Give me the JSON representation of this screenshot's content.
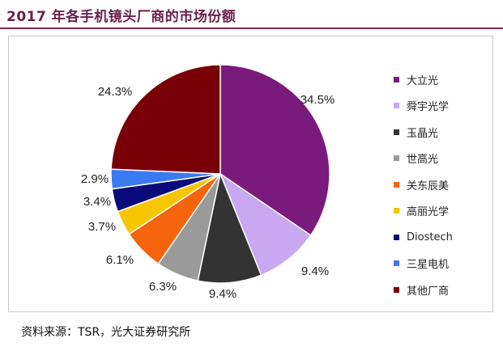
{
  "title": "2017 年各手机镜头厂商的市场份额",
  "source": "资料来源：TSR，光大证券研究所",
  "chart_data": {
    "type": "pie",
    "title": "2017 年各手机镜头厂商的市场份额",
    "legend_position": "right",
    "slices": [
      {
        "name": "大立光",
        "value": 34.5,
        "label": "34.5%",
        "color": "#7b1a7d"
      },
      {
        "name": "舜宇光学",
        "value": 9.4,
        "label": "9.4%",
        "color": "#c9a7f1"
      },
      {
        "name": "玉晶光",
        "value": 9.4,
        "label": "9.4%",
        "color": "#333333"
      },
      {
        "name": "世高光",
        "value": 6.3,
        "label": "6.3%",
        "color": "#9a9a9a"
      },
      {
        "name": "关东辰美",
        "value": 6.1,
        "label": "6.1%",
        "color": "#f5640c"
      },
      {
        "name": "高丽光学",
        "value": 3.7,
        "label": "3.7%",
        "color": "#f7c600"
      },
      {
        "name": "Diostech",
        "value": 3.4,
        "label": "3.4%",
        "color": "#0a0a7a"
      },
      {
        "name": "三星电机",
        "value": 2.9,
        "label": "2.9%",
        "color": "#3a7af0"
      },
      {
        "name": "其他厂商",
        "value": 24.3,
        "label": "24.3%",
        "color": "#7a0008"
      }
    ]
  }
}
